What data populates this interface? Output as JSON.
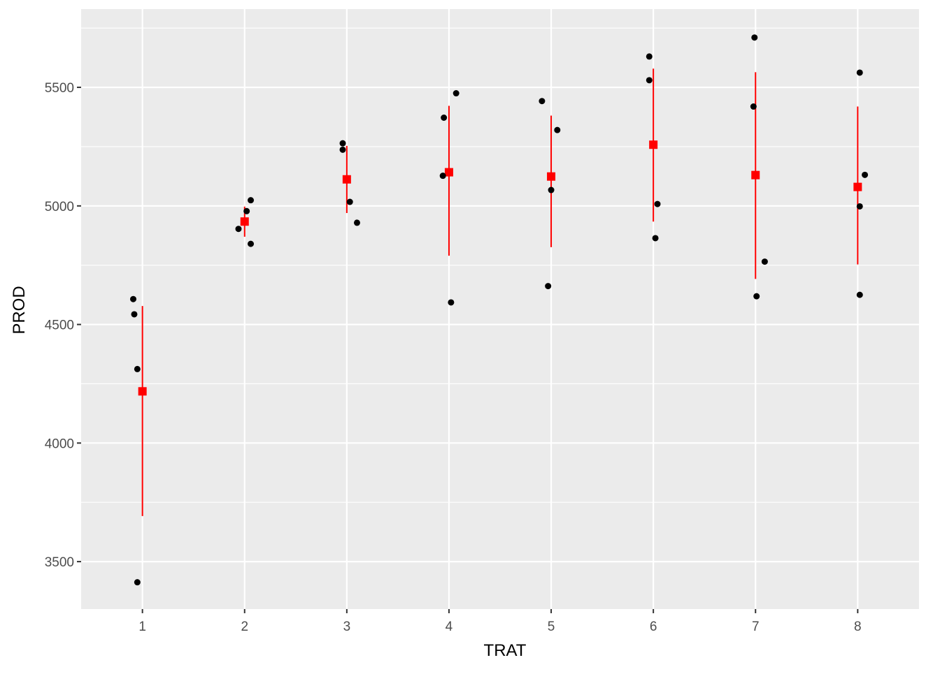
{
  "chart_data": {
    "type": "scatter",
    "title": "",
    "xlabel": "TRAT",
    "ylabel": "PROD",
    "x_categories": [
      "1",
      "2",
      "3",
      "4",
      "5",
      "6",
      "7",
      "8"
    ],
    "ylim": [
      3300,
      5830
    ],
    "yticks": [
      3500,
      4000,
      4500,
      5000,
      5500
    ],
    "grid": true,
    "legend": "none",
    "colors": {
      "panel": "#ebebeb",
      "grid": "#ffffff",
      "points": "#000000",
      "summary": "#ff0000"
    },
    "series": [
      {
        "kind": "observations",
        "points": [
          {
            "x": 0.91,
            "y": 4607
          },
          {
            "x": 0.92,
            "y": 4543
          },
          {
            "x": 0.95,
            "y": 4312
          },
          {
            "x": 0.95,
            "y": 3413
          },
          {
            "x": 1.94,
            "y": 4903
          },
          {
            "x": 2.02,
            "y": 4978
          },
          {
            "x": 2.06,
            "y": 5024
          },
          {
            "x": 2.06,
            "y": 4840
          },
          {
            "x": 2.96,
            "y": 5264
          },
          {
            "x": 2.96,
            "y": 5237
          },
          {
            "x": 3.03,
            "y": 5017
          },
          {
            "x": 3.1,
            "y": 4929
          },
          {
            "x": 3.95,
            "y": 5372
          },
          {
            "x": 3.94,
            "y": 5127
          },
          {
            "x": 4.02,
            "y": 4593
          },
          {
            "x": 4.07,
            "y": 5475
          },
          {
            "x": 4.91,
            "y": 5442
          },
          {
            "x": 5.0,
            "y": 5067
          },
          {
            "x": 5.06,
            "y": 5320
          },
          {
            "x": 4.97,
            "y": 4662
          },
          {
            "x": 5.96,
            "y": 5630
          },
          {
            "x": 5.96,
            "y": 5530
          },
          {
            "x": 6.04,
            "y": 5008
          },
          {
            "x": 6.02,
            "y": 4864
          },
          {
            "x": 6.99,
            "y": 5710
          },
          {
            "x": 6.98,
            "y": 5419
          },
          {
            "x": 7.09,
            "y": 4765
          },
          {
            "x": 7.01,
            "y": 4619
          },
          {
            "x": 8.02,
            "y": 5562
          },
          {
            "x": 8.07,
            "y": 5131
          },
          {
            "x": 8.02,
            "y": 4998
          },
          {
            "x": 8.02,
            "y": 4625
          }
        ]
      },
      {
        "kind": "mean_with_error",
        "summary": [
          {
            "x": 1,
            "mean": 4218,
            "low": 3692,
            "high": 4578
          },
          {
            "x": 2,
            "mean": 4934,
            "low": 4870,
            "high": 4997
          },
          {
            "x": 3,
            "mean": 5112,
            "low": 4970,
            "high": 5253
          },
          {
            "x": 4,
            "mean": 5142,
            "low": 4790,
            "high": 5422
          },
          {
            "x": 5,
            "mean": 5124,
            "low": 4826,
            "high": 5381
          },
          {
            "x": 6,
            "mean": 5258,
            "low": 4934,
            "high": 5579
          },
          {
            "x": 7,
            "mean": 5130,
            "low": 4692,
            "high": 5564
          },
          {
            "x": 8,
            "mean": 5080,
            "low": 4753,
            "high": 5419
          }
        ]
      }
    ]
  }
}
